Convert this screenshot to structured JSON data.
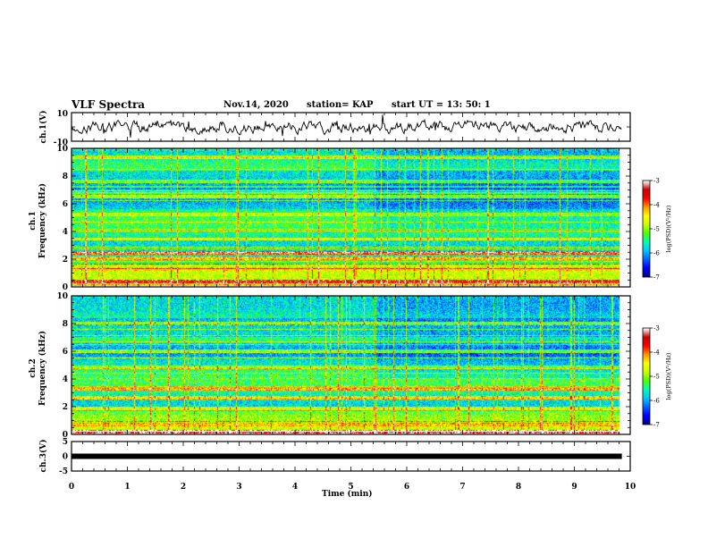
{
  "header": {
    "title": "VLF Spectra",
    "date": "Nov.14, 2020",
    "station": "station= KAP",
    "start": "start  UT  =   13: 50: 1"
  },
  "chart_data": [
    {
      "type": "line",
      "panel": "ch1-waveform",
      "ylabel": "ch.1(V)",
      "ylim": [
        -10,
        10
      ],
      "yticklabels": [
        "10",
        "-10"
      ],
      "trace_color": "#000000"
    },
    {
      "type": "heatmap",
      "panel": "ch1-spectrogram",
      "ylabel": "ch.1\nFrequency  (kHz)",
      "ylim": [
        0,
        10
      ],
      "yticklabels": [
        "0",
        "2",
        "4",
        "6",
        "8",
        "10"
      ],
      "colorbar": {
        "range": [
          -7,
          -3
        ],
        "ticks": [
          "-3",
          "-4",
          "-5",
          "-6",
          "-7"
        ],
        "label": "log(PSD)(V²/Hz)"
      },
      "bands": [
        {
          "f": 0.3,
          "level": -3.6
        },
        {
          "f": 1.2,
          "level": -4.6
        },
        {
          "f": 2.0,
          "level": -4.4
        },
        {
          "f": 2.4,
          "level": -4.2
        },
        {
          "f": 3.4,
          "level": -4.8
        },
        {
          "f": 5.2,
          "level": -4.9
        },
        {
          "f": 6.5,
          "level": -5.0
        },
        {
          "f": 7.6,
          "level": -5.2
        },
        {
          "f": 9.4,
          "level": -5.0
        }
      ]
    },
    {
      "type": "heatmap",
      "panel": "ch2-spectrogram",
      "ylabel": "ch.2\nFrequency  (kHz)",
      "ylim": [
        0,
        10
      ],
      "yticklabels": [
        "0",
        "2",
        "4",
        "6",
        "8",
        "10"
      ],
      "colorbar": {
        "range": [
          -7,
          -3
        ],
        "ticks": [
          "-3",
          "-4",
          "-5",
          "-6",
          "-7"
        ],
        "label": "log(PSD)(V²/Hz)"
      },
      "bands": [
        {
          "f": 0.1,
          "level": -3.4
        },
        {
          "f": 0.6,
          "level": -4.4
        },
        {
          "f": 1.8,
          "level": -4.7
        },
        {
          "f": 2.6,
          "level": -4.5
        },
        {
          "f": 3.2,
          "level": -4.3
        },
        {
          "f": 4.8,
          "level": -5.0
        },
        {
          "f": 6.0,
          "level": -5.1
        },
        {
          "f": 8.0,
          "level": -5.2
        }
      ]
    },
    {
      "type": "line",
      "panel": "ch3-waveform",
      "ylabel": "ch.3(V)",
      "ylim": [
        -5,
        5
      ],
      "yticklabels": [
        "5",
        "0",
        "-5"
      ],
      "level": 0,
      "trace_color": "#000000"
    }
  ],
  "xaxis": {
    "label": "Time  (min)",
    "range": [
      0,
      10
    ],
    "ticks": [
      "0",
      "1",
      "2",
      "3",
      "4",
      "5",
      "6",
      "7",
      "8",
      "9",
      "10"
    ],
    "data_end": 9.85
  },
  "colors": {
    "colormap": [
      "#00008c",
      "#0000ff",
      "#0064ff",
      "#00c8ff",
      "#00ffb4",
      "#50ff00",
      "#c8ff00",
      "#ffff00",
      "#ff9600",
      "#ff0000",
      "#c80000",
      "#ffffff"
    ]
  }
}
